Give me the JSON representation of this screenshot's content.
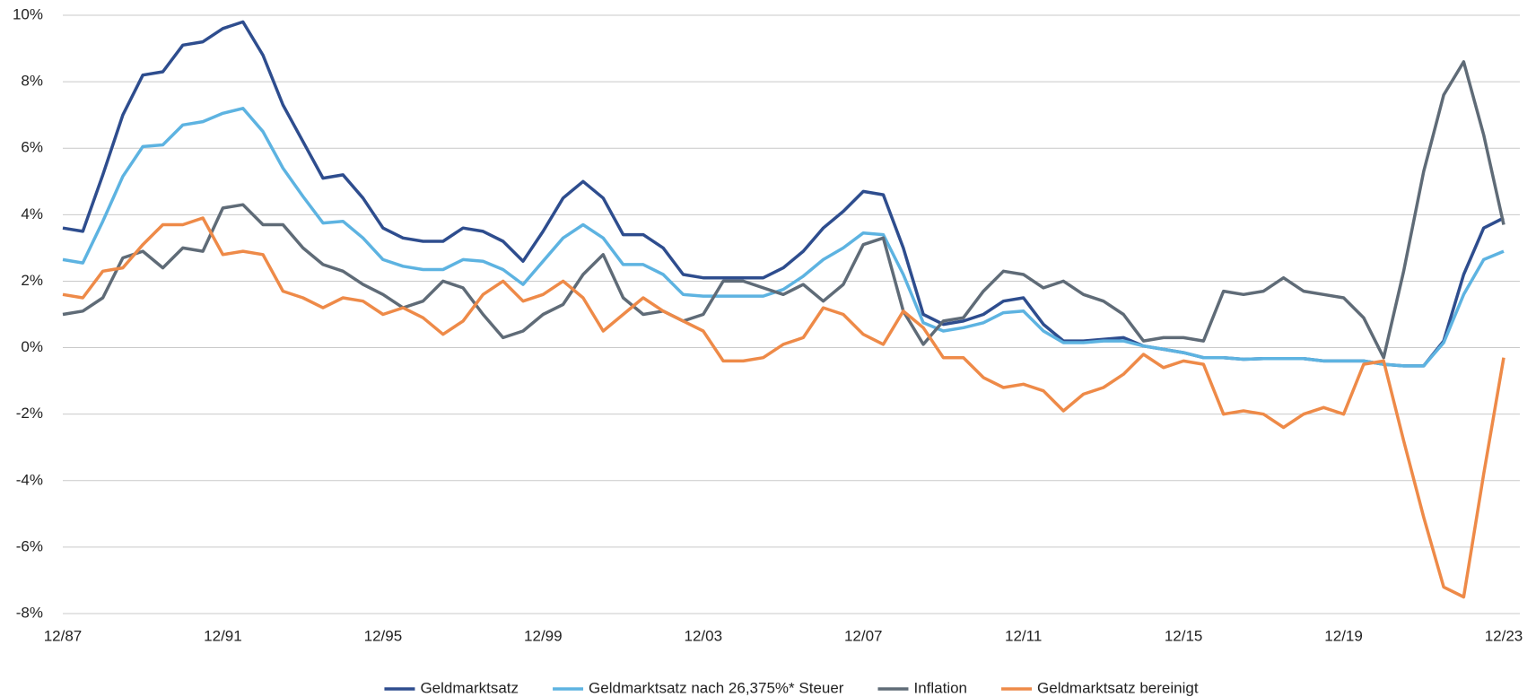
{
  "chart_data": {
    "type": "line",
    "categories": [
      "12/87",
      null,
      null,
      null,
      null,
      null,
      null,
      null,
      "12/91",
      null,
      null,
      null,
      null,
      null,
      null,
      null,
      "12/95",
      null,
      null,
      null,
      null,
      null,
      null,
      null,
      "12/99",
      null,
      null,
      null,
      null,
      null,
      null,
      null,
      "12/03",
      null,
      null,
      null,
      null,
      null,
      null,
      null,
      "12/07",
      null,
      null,
      null,
      null,
      null,
      null,
      null,
      "12/11",
      null,
      null,
      null,
      null,
      null,
      null,
      null,
      "12/15",
      null,
      null,
      null,
      null,
      null,
      null,
      null,
      "12/19",
      null,
      null,
      null,
      null,
      null,
      null,
      null,
      "12/23"
    ],
    "ylim": [
      -8,
      10
    ],
    "yticks": [
      {
        "value": -8,
        "label": "-8%"
      },
      {
        "value": -6,
        "label": "-6%"
      },
      {
        "value": -4,
        "label": "-4%"
      },
      {
        "value": -2,
        "label": "-2%"
      },
      {
        "value": 0,
        "label": "0%"
      },
      {
        "value": 2,
        "label": "2%"
      },
      {
        "value": 4,
        "label": "4%"
      },
      {
        "value": 6,
        "label": "6%"
      },
      {
        "value": 8,
        "label": "8%"
      },
      {
        "value": 10,
        "label": "10%"
      }
    ],
    "grid": true,
    "legend": "bottom",
    "series": [
      {
        "name": "Geldmarktsatz",
        "color": "#2e4d8e",
        "values": [
          3.6,
          3.5,
          5.2,
          7.0,
          8.2,
          8.3,
          9.1,
          9.2,
          9.6,
          9.8,
          8.8,
          7.3,
          6.2,
          5.1,
          5.2,
          4.5,
          3.6,
          3.3,
          3.2,
          3.2,
          3.6,
          3.5,
          3.2,
          2.6,
          3.5,
          4.5,
          5.0,
          4.5,
          3.4,
          3.4,
          3.0,
          2.2,
          2.1,
          2.1,
          2.1,
          2.1,
          2.4,
          2.9,
          3.6,
          4.1,
          4.7,
          4.6,
          3.0,
          1.0,
          0.7,
          0.8,
          1.0,
          1.4,
          1.5,
          0.7,
          0.2,
          0.2,
          0.25,
          0.3,
          0.05,
          -0.05,
          -0.15,
          -0.3,
          -0.3,
          -0.35,
          -0.33,
          -0.33,
          -0.33,
          -0.4,
          -0.4,
          -0.4,
          -0.5,
          -0.55,
          -0.55,
          0.2,
          2.2,
          3.6,
          3.9
        ]
      },
      {
        "name": "Geldmarktsatz nach 26,375%* Steuer",
        "color": "#5db3e1",
        "values": [
          2.65,
          2.55,
          3.8,
          5.15,
          6.05,
          6.1,
          6.7,
          6.8,
          7.05,
          7.2,
          6.5,
          5.4,
          4.55,
          3.75,
          3.8,
          3.3,
          2.65,
          2.45,
          2.35,
          2.35,
          2.65,
          2.6,
          2.35,
          1.9,
          2.6,
          3.3,
          3.7,
          3.3,
          2.5,
          2.5,
          2.2,
          1.6,
          1.55,
          1.55,
          1.55,
          1.55,
          1.75,
          2.15,
          2.65,
          3.0,
          3.45,
          3.4,
          2.2,
          0.75,
          0.5,
          0.6,
          0.75,
          1.05,
          1.1,
          0.5,
          0.15,
          0.15,
          0.2,
          0.2,
          0.05,
          -0.05,
          -0.15,
          -0.3,
          -0.3,
          -0.35,
          -0.33,
          -0.33,
          -0.33,
          -0.4,
          -0.4,
          -0.4,
          -0.5,
          -0.55,
          -0.55,
          0.15,
          1.6,
          2.65,
          2.9
        ]
      },
      {
        "name": "Inflation",
        "color": "#5f6b77",
        "values": [
          1.0,
          1.1,
          1.5,
          2.7,
          2.9,
          2.4,
          3.0,
          2.9,
          4.2,
          4.3,
          3.7,
          3.7,
          3.0,
          2.5,
          2.3,
          1.9,
          1.6,
          1.2,
          1.4,
          2.0,
          1.8,
          1.0,
          0.3,
          0.5,
          1.0,
          1.3,
          2.2,
          2.8,
          1.5,
          1.0,
          1.1,
          0.8,
          1.0,
          2.0,
          2.0,
          1.8,
          1.6,
          1.9,
          1.4,
          1.9,
          3.1,
          3.3,
          1.1,
          0.1,
          0.8,
          0.9,
          1.7,
          2.3,
          2.2,
          1.8,
          2.0,
          1.6,
          1.4,
          1.0,
          0.2,
          0.3,
          0.3,
          0.2,
          1.7,
          1.6,
          1.7,
          2.1,
          1.7,
          1.6,
          1.5,
          0.9,
          -0.3,
          2.3,
          5.3,
          7.6,
          8.6,
          6.4,
          3.7
        ]
      },
      {
        "name": "Geldmarktsatz bereinigt",
        "color": "#ee8a48",
        "values": [
          1.6,
          1.5,
          2.3,
          2.4,
          3.1,
          3.7,
          3.7,
          3.9,
          2.8,
          2.9,
          2.8,
          1.7,
          1.5,
          1.2,
          1.5,
          1.4,
          1.0,
          1.2,
          0.9,
          0.4,
          0.8,
          1.6,
          2.0,
          1.4,
          1.6,
          2.0,
          1.5,
          0.5,
          1.0,
          1.5,
          1.1,
          0.8,
          0.5,
          -0.4,
          -0.4,
          -0.3,
          0.1,
          0.3,
          1.2,
          1.0,
          0.4,
          0.1,
          1.1,
          0.6,
          -0.3,
          -0.3,
          -0.9,
          -1.2,
          -1.1,
          -1.3,
          -1.9,
          -1.4,
          -1.2,
          -0.8,
          -0.2,
          -0.6,
          -0.4,
          -0.5,
          -2.0,
          -1.9,
          -2.0,
          -2.4,
          -2.0,
          -1.8,
          -2.0,
          -0.5,
          -0.4,
          -2.8,
          -5.1,
          -7.2,
          -7.5,
          -3.8,
          -0.3
        ]
      }
    ]
  }
}
